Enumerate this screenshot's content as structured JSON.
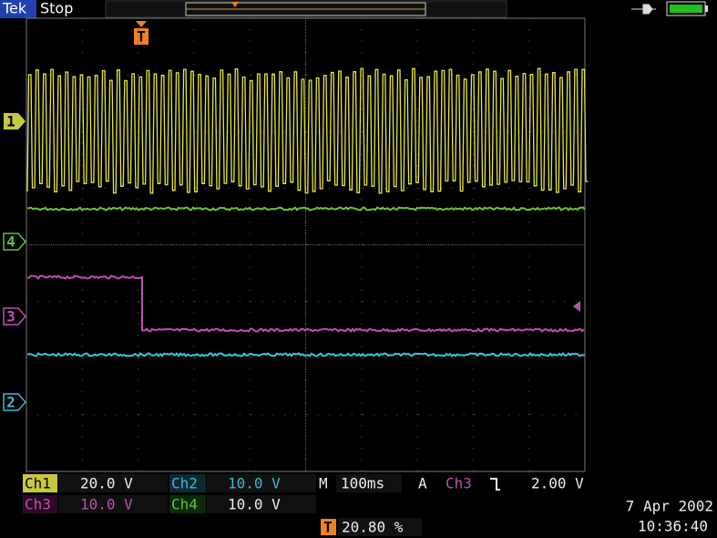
{
  "header": {
    "brand": "Tek",
    "status": "Stop"
  },
  "markers": {
    "trigger": "T",
    "channels": [
      "1",
      "4",
      "3",
      "2"
    ]
  },
  "readouts": {
    "ch1": {
      "label": "Ch1",
      "scale": "20.0 V"
    },
    "ch2": {
      "label": "Ch2",
      "scale": "10.0 V"
    },
    "ch3": {
      "label": "Ch3",
      "scale": "10.0 V"
    },
    "ch4": {
      "label": "Ch4",
      "scale": "10.0 V"
    },
    "timebase": {
      "label": "M",
      "value": "100ms"
    },
    "trigger": {
      "mode": "A",
      "source": "Ch3",
      "level": "2.00 V"
    },
    "position": {
      "marker": "T",
      "value": "20.80 %"
    }
  },
  "date": "7 Apr 2002",
  "time": "10:36:40"
}
